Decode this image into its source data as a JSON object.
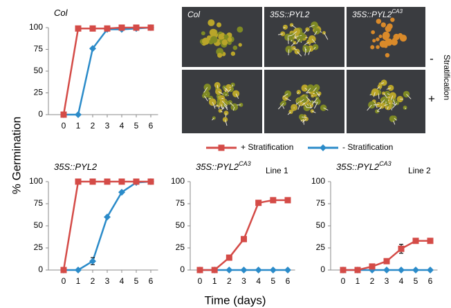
{
  "chart_data": [
    {
      "type": "line",
      "title": "Col",
      "x": [
        0,
        1,
        2,
        3,
        4,
        5,
        6
      ],
      "xlim": [
        -1,
        6.5
      ],
      "xticks": [
        0,
        1,
        2,
        3,
        4,
        5,
        6
      ],
      "ylim": [
        0,
        100
      ],
      "yticks": [
        0,
        25,
        50,
        75,
        100
      ],
      "series": [
        {
          "name": "+ Stratification",
          "color": "#d44b47",
          "marker": "square",
          "values": [
            0,
            99,
            99,
            99,
            100,
            100,
            100
          ]
        },
        {
          "name": "- Stratification",
          "color": "#2b8bc9",
          "marker": "diamond",
          "values": [
            0,
            0,
            76,
            98,
            98,
            99,
            100
          ]
        }
      ]
    },
    {
      "type": "line",
      "title": "35S::PYL2",
      "x": [
        0,
        1,
        2,
        3,
        4,
        5,
        6
      ],
      "xlim": [
        -1,
        6.5
      ],
      "xticks": [
        0,
        1,
        2,
        3,
        4,
        5,
        6
      ],
      "ylim": [
        0,
        100
      ],
      "yticks": [
        0,
        25,
        50,
        75,
        100
      ],
      "series": [
        {
          "color": "#d44b47",
          "marker": "square",
          "values": [
            0,
            100,
            100,
            100,
            100,
            100,
            100
          ]
        },
        {
          "color": "#2b8bc9",
          "marker": "diamond",
          "values": [
            0,
            0,
            10,
            60,
            88,
            99,
            100
          ],
          "errors": [
            null,
            null,
            4,
            null,
            null,
            null,
            null
          ]
        }
      ]
    },
    {
      "type": "line",
      "title": "35S::PYL2",
      "title_sup": "CA3",
      "subtitle": "Line 1",
      "x": [
        0,
        1,
        2,
        3,
        4,
        5,
        6
      ],
      "xlim": [
        -1,
        6.5
      ],
      "xticks": [
        0,
        1,
        2,
        3,
        4,
        5,
        6
      ],
      "ylim": [
        0,
        100
      ],
      "yticks": [
        0,
        25,
        50,
        75,
        100
      ],
      "series": [
        {
          "color": "#d44b47",
          "marker": "square",
          "values": [
            0,
            0,
            14,
            35,
            76,
            79,
            79
          ]
        },
        {
          "color": "#2b8bc9",
          "marker": "diamond",
          "values": [
            0,
            0,
            0,
            0,
            0,
            0,
            0
          ]
        }
      ]
    },
    {
      "type": "line",
      "title": "35S::PYL2",
      "title_sup": "CA3",
      "subtitle": "Line 2",
      "x": [
        0,
        1,
        2,
        3,
        4,
        5,
        6
      ],
      "xlim": [
        -1,
        6.5
      ],
      "xticks": [
        0,
        1,
        2,
        3,
        4,
        5,
        6
      ],
      "ylim": [
        0,
        100
      ],
      "yticks": [
        0,
        25,
        50,
        75,
        100
      ],
      "series": [
        {
          "color": "#d44b47",
          "marker": "square",
          "values": [
            0,
            0,
            4,
            10,
            24,
            33,
            33
          ],
          "errors": [
            null,
            null,
            null,
            null,
            5,
            2,
            null
          ]
        },
        {
          "color": "#2b8bc9",
          "marker": "diamond",
          "values": [
            0,
            0,
            0,
            0,
            0,
            0,
            0
          ]
        }
      ]
    }
  ],
  "y_label": "% Germination",
  "x_label": "Time (days)",
  "photo": {
    "columns": [
      {
        "title": "Col"
      },
      {
        "title": "35S::PYL2"
      },
      {
        "title": "35S::PYL2",
        "sup": "CA3"
      }
    ],
    "rows": [
      "-",
      "+"
    ],
    "side_label": "Stratification"
  }
}
